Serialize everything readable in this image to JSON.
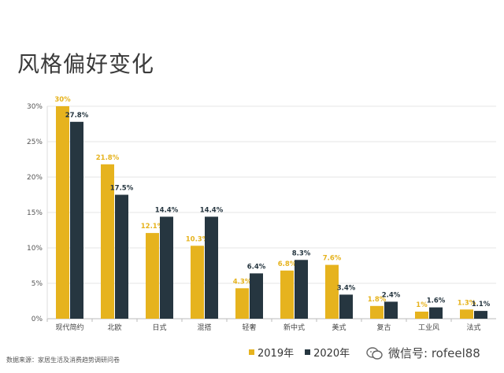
{
  "chart_data": {
    "type": "bar",
    "title": "风格偏好变化",
    "categories": [
      "现代简约",
      "北欧",
      "日式",
      "混搭",
      "轻奢",
      "新中式",
      "美式",
      "复古",
      "工业风",
      "法式"
    ],
    "series": [
      {
        "name": "2019年",
        "color": "#e6b31e",
        "values": [
          30,
          21.8,
          12.1,
          10.3,
          4.3,
          6.8,
          7.6,
          1.8,
          1,
          1.3
        ],
        "labels": [
          "30%",
          "21.8%",
          "12.1%",
          "10.3%",
          "4.3%",
          "6.8%",
          "7.6%",
          "1.8%",
          "1%",
          "1.3%"
        ]
      },
      {
        "name": "2020年",
        "color": "#263640",
        "values": [
          27.8,
          17.5,
          14.4,
          14.4,
          6.4,
          8.3,
          3.4,
          2.4,
          1.6,
          1.1
        ],
        "labels": [
          "27.8%",
          "17.5%",
          "14.4%",
          "14.4%",
          "6.4%",
          "8.3%",
          "3.4%",
          "2.4%",
          "1.6%",
          "1.1%"
        ]
      }
    ],
    "ylim": [
      0,
      30
    ],
    "yticks": [
      "0%",
      "5%",
      "10%",
      "15%",
      "20%",
      "25%",
      "30%"
    ],
    "legend_position": "bottom"
  },
  "source_text": "数据来源：家居生活及消费趋势调研问卷",
  "watermark_text": "微信号: rofeel88"
}
